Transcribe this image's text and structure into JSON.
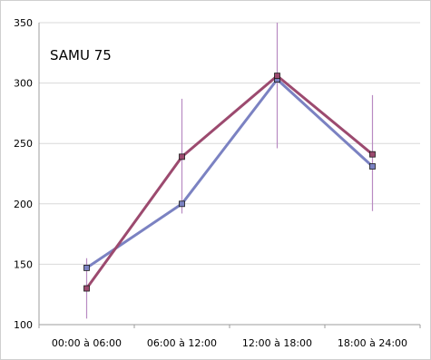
{
  "chart_data": {
    "type": "line",
    "title": "SAMU 75",
    "xlabel": "",
    "ylabel": "",
    "categories": [
      "00:00 à 06:00",
      "06:00 à 12:00",
      "12:00 à 18:00",
      "18:00 à 24:00"
    ],
    "ylim": [
      100,
      350
    ],
    "yticks": [
      100,
      150,
      200,
      250,
      300,
      350
    ],
    "grid": true,
    "legend": "none",
    "series": [
      {
        "color": "#7b82c2",
        "values": [
          147,
          200,
          303,
          231
        ]
      },
      {
        "color": "#9c4a6f",
        "values": [
          130,
          239,
          306,
          241
        ]
      }
    ],
    "error_bars": {
      "color": "#b88ac2",
      "low": [
        105,
        192,
        246,
        194
      ],
      "high": [
        155,
        287,
        350,
        290
      ]
    }
  }
}
